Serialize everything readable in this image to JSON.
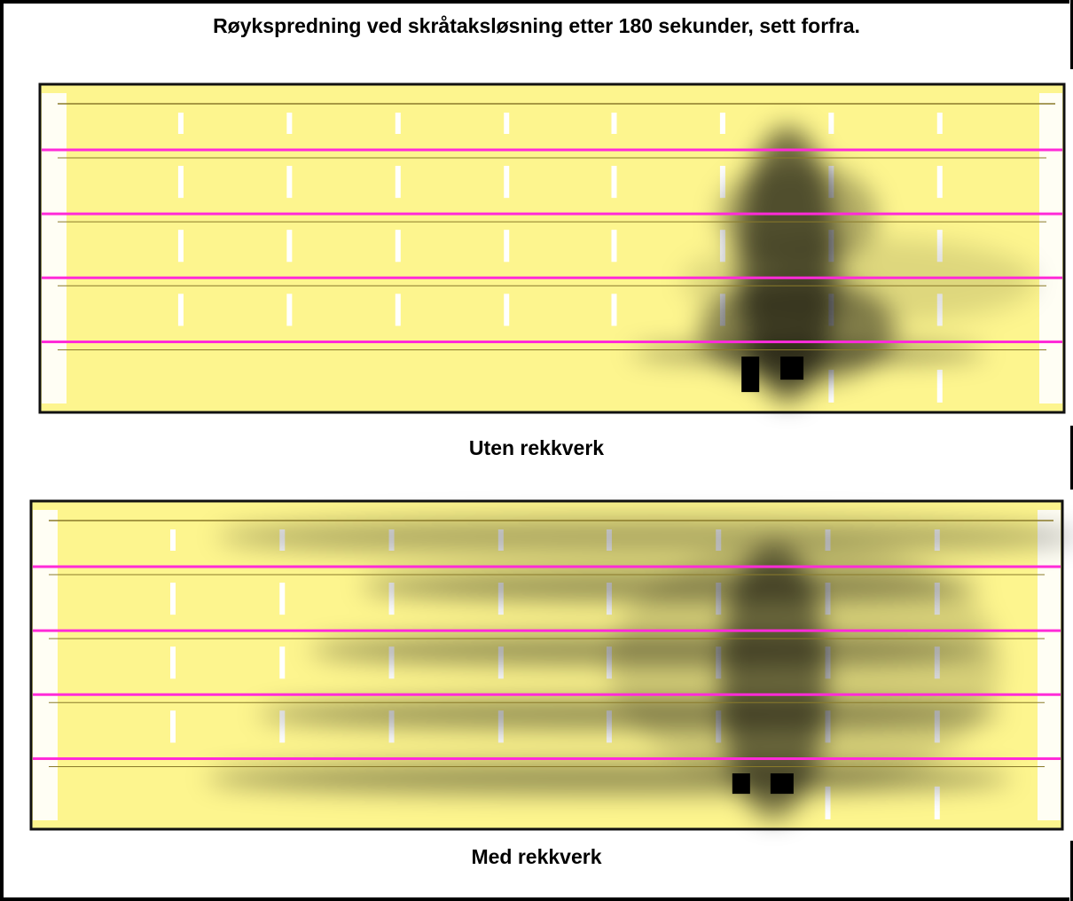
{
  "title": "Røykspredning ved skråtaksløsning etter 180 sekunder, sett forfra.",
  "panels": [
    {
      "caption": "Uten rekkverk"
    },
    {
      "caption": "Med rekkverk"
    }
  ]
}
